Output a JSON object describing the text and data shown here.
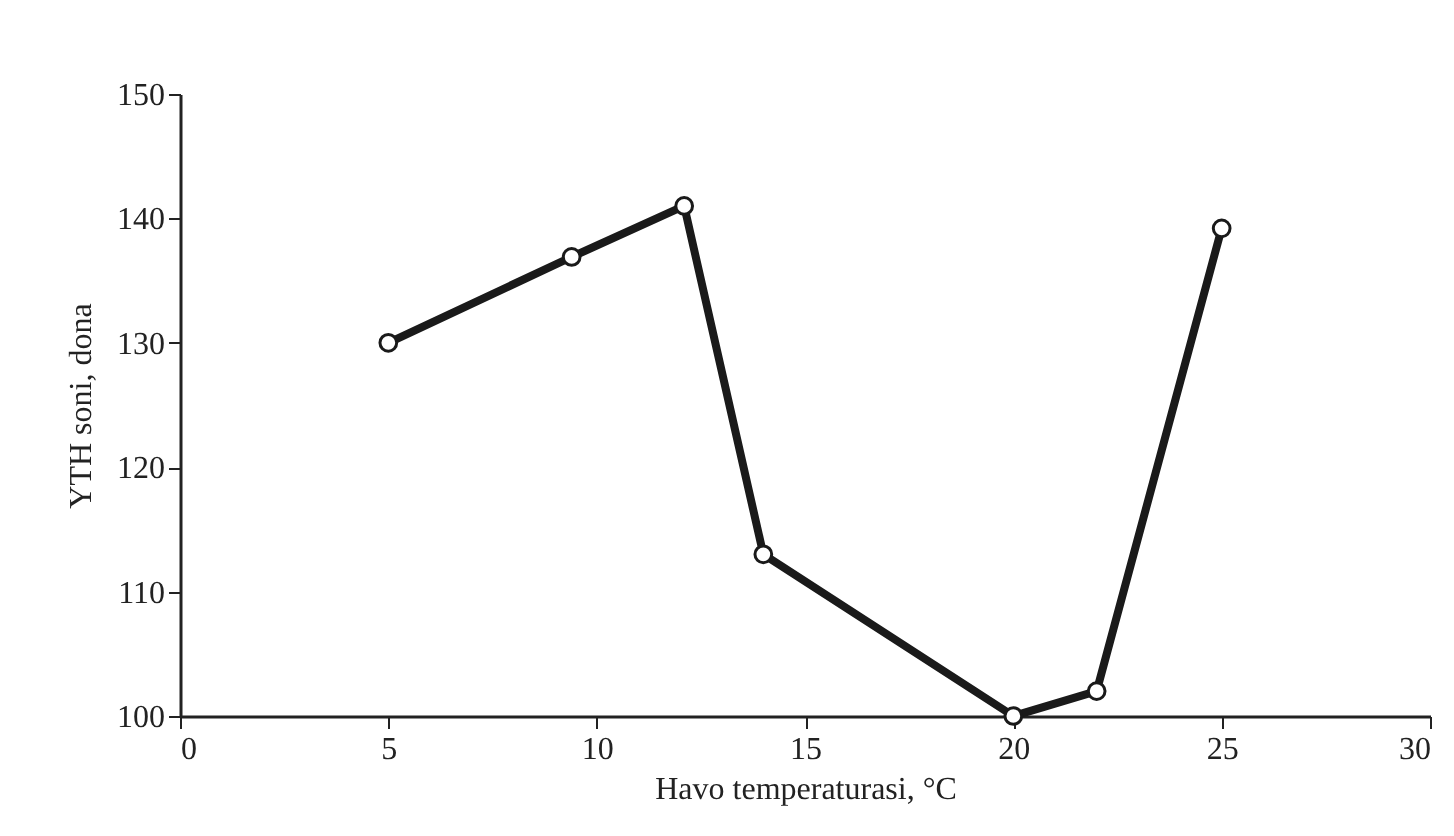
{
  "chart_data": {
    "type": "line",
    "xlabel": "Havo temperaturasi, °C",
    "ylabel": "YTH soni, dona",
    "series": [
      {
        "color": "#1a1a1a",
        "x": [
          5,
          9.4,
          12.1,
          14,
          20,
          22,
          25
        ],
        "values": [
          130,
          136.9,
          141,
          113,
          100,
          102,
          139.2
        ]
      }
    ],
    "xlim": [
      0,
      30
    ],
    "xticks": [
      0,
      5,
      10,
      15,
      20,
      25,
      30
    ],
    "ylim": [
      100,
      150
    ],
    "yticks": [
      100,
      110,
      120,
      130,
      140,
      150
    ],
    "grid": false,
    "marker": "circle",
    "line_style": "solid"
  }
}
